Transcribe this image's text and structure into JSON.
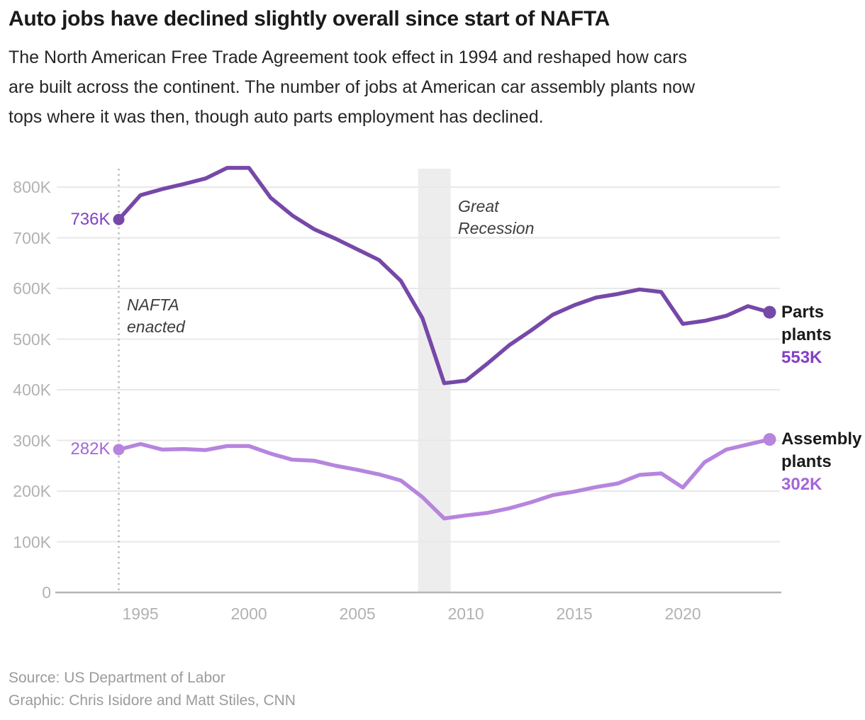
{
  "header": {
    "title": "Auto jobs have declined slightly overall since start of NAFTA",
    "subtitle_lines": [
      "The North American Free Trade Agreement took effect in 1994 and reshaped how cars",
      "are built across the continent. The number of jobs at American car assembly plants now",
      "tops where it was then, though auto parts employment has declined."
    ]
  },
  "chart_data": {
    "type": "line",
    "title": "Auto jobs have declined slightly overall since start of NAFTA",
    "xlabel": "",
    "ylabel": "",
    "units": "jobs (thousands)",
    "xlim": [
      1994,
      2024
    ],
    "ylim": [
      0,
      840
    ],
    "grid": true,
    "x": [
      1994,
      1995,
      1996,
      1997,
      1998,
      1999,
      2000,
      2001,
      2002,
      2003,
      2004,
      2005,
      2006,
      2007,
      2008,
      2009,
      2010,
      2011,
      2012,
      2013,
      2014,
      2015,
      2016,
      2017,
      2018,
      2019,
      2020,
      2021,
      2022,
      2023,
      2024
    ],
    "series": [
      {
        "name": "Parts plants",
        "label_lines": [
          "Parts",
          "plants"
        ],
        "start_label": "736K",
        "value_label": "553K",
        "color": "#7648a8",
        "value_color": "#8340c4",
        "values": [
          736,
          784,
          796,
          806,
          817,
          838,
          838,
          779,
          744,
          717,
          698,
          677,
          656,
          615,
          541,
          413,
          418,
          452,
          488,
          517,
          548,
          567,
          582,
          589,
          598,
          593,
          530,
          536,
          546,
          565,
          553
        ]
      },
      {
        "name": "Assembly plants",
        "label_lines": [
          "Assembly",
          "plants"
        ],
        "start_label": "282K",
        "value_label": "302K",
        "color": "#b685de",
        "value_color": "#a465da",
        "values": [
          282,
          293,
          282,
          283,
          281,
          289,
          289,
          274,
          262,
          260,
          250,
          242,
          233,
          221,
          188,
          146,
          152,
          157,
          166,
          178,
          192,
          199,
          208,
          215,
          232,
          235,
          207,
          257,
          282,
          292,
          302
        ]
      }
    ],
    "y_ticks": [
      {
        "value": 0,
        "label": "0"
      },
      {
        "value": 100,
        "label": "100K"
      },
      {
        "value": 200,
        "label": "200K"
      },
      {
        "value": 300,
        "label": "300K"
      },
      {
        "value": 400,
        "label": "400K"
      },
      {
        "value": 500,
        "label": "500K"
      },
      {
        "value": 600,
        "label": "600K"
      },
      {
        "value": 700,
        "label": "700K"
      },
      {
        "value": 800,
        "label": "800K"
      }
    ],
    "x_ticks": [
      {
        "year": 1995,
        "label": "1995"
      },
      {
        "year": 2000,
        "label": "2000"
      },
      {
        "year": 2005,
        "label": "2005"
      },
      {
        "year": 2010,
        "label": "2010"
      },
      {
        "year": 2015,
        "label": "2015"
      },
      {
        "year": 2020,
        "label": "2020"
      }
    ],
    "annotations": {
      "nafta": {
        "lines": [
          "NAFTA",
          "enacted"
        ],
        "year": 1994
      },
      "recession": {
        "lines": [
          "Great",
          "Recession"
        ],
        "start_year": 2007.8,
        "end_year": 2009.3
      }
    },
    "legend_position": "right"
  },
  "footer": {
    "source": "Source: US Department of Labor",
    "credit": "Graphic: Chris Isidore and Matt Stiles, CNN"
  },
  "colors": {
    "background": "#ffffff",
    "title": "#1a1a1a",
    "subtitle": "#262626",
    "axis_text": "#b2b2b2",
    "axis_line": "#b5b5b5",
    "gridline": "#e8e8e8",
    "recession_band": "#ededed",
    "nafta_line": "#bbbbbb",
    "annotation": "#3d3d3d",
    "source": "#9b9b9b"
  }
}
